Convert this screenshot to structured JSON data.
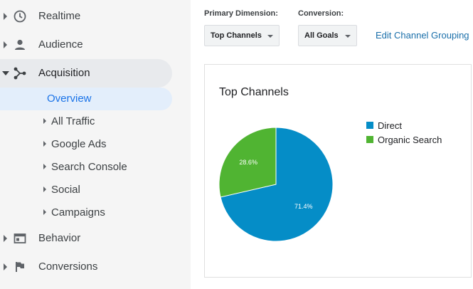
{
  "sidebar": {
    "items": [
      {
        "label": "Realtime",
        "icon": "clock-icon"
      },
      {
        "label": "Audience",
        "icon": "person-icon"
      },
      {
        "label": "Acquisition",
        "icon": "acquisition-icon"
      },
      {
        "label": "Behavior",
        "icon": "behavior-icon"
      },
      {
        "label": "Conversions",
        "icon": "flag-icon"
      }
    ],
    "acquisition_sub": [
      {
        "label": "Overview"
      },
      {
        "label": "All Traffic"
      },
      {
        "label": "Google Ads"
      },
      {
        "label": "Search Console"
      },
      {
        "label": "Social"
      },
      {
        "label": "Campaigns"
      }
    ]
  },
  "controls": {
    "primary_label": "Primary Dimension:",
    "primary_value": "Top Channels",
    "conversion_label": "Conversion:",
    "conversion_value": "All Goals",
    "edit_link": "Edit Channel Grouping"
  },
  "chart_data": {
    "type": "pie",
    "title": "Top Channels",
    "categories": [
      "Direct",
      "Organic Search"
    ],
    "values": [
      71.4,
      28.6
    ],
    "labels": [
      "71.4%",
      "28.6%"
    ],
    "colors": [
      "#058dc7",
      "#50b432"
    ],
    "legend_placement": "right"
  }
}
